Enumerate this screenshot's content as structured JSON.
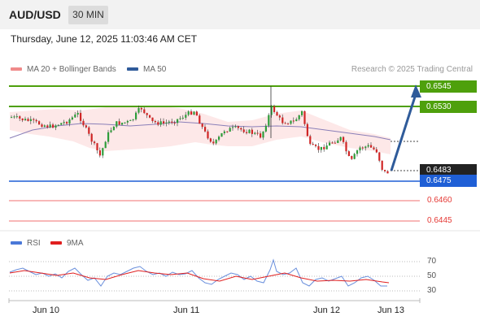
{
  "header": {
    "symbol": "AUD/USD",
    "timeframe": "30 MIN"
  },
  "datetime": "Thursday, June 12, 2025 11:03:46 AM CET",
  "legend": {
    "bb": {
      "label": "MA 20 + Bollinger Bands",
      "color": "#f08a8a"
    },
    "ma50": {
      "label": "MA 50",
      "color": "#2f5b9a"
    }
  },
  "credit": "Research © 2025 Trading Central",
  "levels": {
    "r2": {
      "value": "0.6545",
      "color": "#4ea00c"
    },
    "r1": {
      "value": "0.6530",
      "color": "#4ea00c"
    },
    "last": {
      "value": "0.6483",
      "color": "#222222"
    },
    "pivot": {
      "value": "0.6475",
      "color": "#1f5fd6"
    },
    "s1": {
      "value": "0.6460",
      "color": "#e53935"
    },
    "s2": {
      "value": "0.6445",
      "color": "#e53935"
    }
  },
  "rsi_legend": {
    "rsi": {
      "label": "RSI",
      "color": "#4a78d8"
    },
    "ma9": {
      "label": "9MA",
      "color": "#e01f1f"
    }
  },
  "rsi_axis": [
    "70",
    "50",
    "30"
  ],
  "dates": [
    "Jun 10",
    "Jun 11",
    "Jun 12",
    "Jun 13"
  ]
}
